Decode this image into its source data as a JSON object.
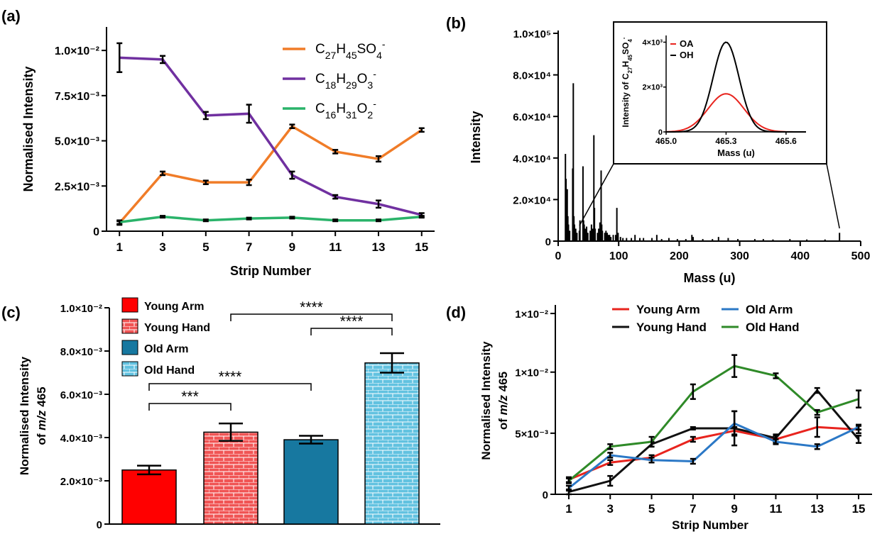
{
  "figure": {
    "panels": [
      {
        "id": "a",
        "label": "(a)"
      },
      {
        "id": "b",
        "label": "(b)"
      },
      {
        "id": "c",
        "label": "(c)"
      },
      {
        "id": "d",
        "label": "(d)"
      }
    ]
  },
  "chart_data": [
    {
      "panel": "(a)",
      "type": "line",
      "xlabel": "Strip Number",
      "ylabel": "Normalised Intensity",
      "x": [
        1,
        3,
        5,
        7,
        9,
        11,
        13,
        15
      ],
      "xticks": [
        "1",
        "3",
        "5",
        "7",
        "9",
        "11",
        "13",
        "15"
      ],
      "ylim": [
        0,
        0.0113
      ],
      "yticks": [
        {
          "v": 0,
          "label": "0"
        },
        {
          "v": 0.0025,
          "label": "2.5×10⁻³"
        },
        {
          "v": 0.005,
          "label": "5.0×10⁻³"
        },
        {
          "v": 0.0075,
          "label": "7.5×10⁻³"
        },
        {
          "v": 0.01,
          "label": "1.0×10⁻²"
        }
      ],
      "series": [
        {
          "name": "C27H45SO4-",
          "legend_html": "C<tspan baseline-shift='sub' font-size='14'>27</tspan>H<tspan baseline-shift='sub' font-size='14'>45</tspan>SO<tspan baseline-shift='sub' font-size='14'>4</tspan><tspan baseline-shift='super' font-size='14'>-</tspan>",
          "color": "#f07c28",
          "values": [
            0.00045,
            0.0032,
            0.0027,
            0.0027,
            0.0058,
            0.0044,
            0.004,
            0.0056
          ],
          "errors": [
            0.0001,
            0.0001,
            0.0001,
            0.00015,
            0.0001,
            0.0001,
            0.00015,
            0.0001
          ]
        },
        {
          "name": "C18H29O3-",
          "legend_html": "C<tspan baseline-shift='sub' font-size='14'>18</tspan>H<tspan baseline-shift='sub' font-size='14'>29</tspan>O<tspan baseline-shift='sub' font-size='14'>3</tspan><tspan baseline-shift='super' font-size='14'>-</tspan>",
          "color": "#7030a0",
          "values": [
            0.0096,
            0.0095,
            0.0064,
            0.0065,
            0.0031,
            0.0019,
            0.0015,
            0.0009
          ],
          "errors": [
            0.0008,
            0.0002,
            0.0002,
            0.0005,
            0.0002,
            0.0001,
            0.0002,
            0.0001
          ]
        },
        {
          "name": "C16H31O2-",
          "legend_html": "C<tspan baseline-shift='sub' font-size='14'>16</tspan>H<tspan baseline-shift='sub' font-size='14'>31</tspan>O<tspan baseline-shift='sub' font-size='14'>2</tspan><tspan baseline-shift='super' font-size='14'>-</tspan>",
          "color": "#2ab36a",
          "values": [
            0.0005,
            0.0008,
            0.0006,
            0.0007,
            0.00075,
            0.0006,
            0.0006,
            0.0008
          ],
          "errors": [
            0.0001,
            5e-05,
            5e-05,
            5e-05,
            5e-05,
            5e-05,
            5e-05,
            5e-05
          ]
        }
      ]
    },
    {
      "panel": "(b)",
      "type": "bar",
      "xlabel": "Mass (u)",
      "ylabel": "Intensity",
      "xlim": [
        0,
        500
      ],
      "ylim": [
        0,
        100000
      ],
      "xticks": [
        {
          "v": 0,
          "label": "0"
        },
        {
          "v": 100,
          "label": "100"
        },
        {
          "v": 200,
          "label": "200"
        },
        {
          "v": 300,
          "label": "300"
        },
        {
          "v": 400,
          "label": "400"
        },
        {
          "v": 500,
          "label": "500"
        }
      ],
      "yticks": [
        {
          "v": 0,
          "label": "0"
        },
        {
          "v": 20000,
          "label": "2.0×10⁴"
        },
        {
          "v": 40000,
          "label": "4.0×10⁴"
        },
        {
          "v": 60000,
          "label": "6.0×10⁴"
        },
        {
          "v": 80000,
          "label": "8.0×10⁴"
        },
        {
          "v": 100000,
          "label": "1.0×10⁵"
        }
      ],
      "peaks": [
        [
          12,
          42000
        ],
        [
          13,
          30000
        ],
        [
          15,
          25000
        ],
        [
          16,
          12000
        ],
        [
          17,
          8000
        ],
        [
          19,
          5000
        ],
        [
          24,
          35000
        ],
        [
          25,
          76000
        ],
        [
          26,
          12000
        ],
        [
          27,
          8000
        ],
        [
          29,
          6000
        ],
        [
          31,
          4000
        ],
        [
          35,
          5000
        ],
        [
          36,
          10000
        ],
        [
          41,
          36000
        ],
        [
          42,
          10000
        ],
        [
          43,
          8000
        ],
        [
          45,
          6000
        ],
        [
          47,
          7000
        ],
        [
          49,
          4000
        ],
        [
          53,
          5000
        ],
        [
          55,
          8000
        ],
        [
          57,
          6000
        ],
        [
          59,
          51000
        ],
        [
          60,
          16000
        ],
        [
          61,
          6000
        ],
        [
          65,
          4000
        ],
        [
          67,
          6000
        ],
        [
          69,
          9000
        ],
        [
          71,
          34000
        ],
        [
          72,
          8000
        ],
        [
          73,
          5000
        ],
        [
          77,
          4000
        ],
        [
          79,
          5000
        ],
        [
          81,
          4000
        ],
        [
          83,
          3000
        ],
        [
          85,
          3000
        ],
        [
          87,
          2000
        ],
        [
          91,
          3000
        ],
        [
          95,
          3000
        ],
        [
          97,
          16000
        ],
        [
          99,
          4000
        ],
        [
          103,
          2000
        ],
        [
          107,
          1500
        ],
        [
          113,
          1500
        ],
        [
          121,
          1500
        ],
        [
          127,
          3000
        ],
        [
          135,
          1500
        ],
        [
          141,
          1500
        ],
        [
          155,
          1500
        ],
        [
          163,
          3000
        ],
        [
          171,
          1000
        ],
        [
          183,
          1500
        ],
        [
          197,
          1000
        ],
        [
          211,
          1000
        ],
        [
          221,
          3000
        ],
        [
          223,
          2000
        ],
        [
          239,
          1000
        ],
        [
          255,
          1000
        ],
        [
          265,
          2000
        ],
        [
          281,
          1500
        ],
        [
          297,
          1000
        ],
        [
          325,
          1000
        ],
        [
          339,
          1000
        ],
        [
          355,
          800
        ],
        [
          383,
          1000
        ],
        [
          411,
          800
        ],
        [
          441,
          800
        ],
        [
          465,
          4000
        ]
      ],
      "inset": {
        "xlabel": "Mass (u)",
        "ylabel_html": "Intensity of C<tspan baseline-shift='sub' font-size='8'>27</tspan>H<tspan baseline-shift='sub' font-size='8'>45</tspan>SO<tspan baseline-shift='sub' font-size='8'>4</tspan><tspan baseline-shift='super' font-size='8'>-</tspan>",
        "xlim": [
          465.0,
          465.7
        ],
        "ylim": [
          0,
          4300
        ],
        "xticks": [
          {
            "v": 465.0,
            "label": "465.0"
          },
          {
            "v": 465.3,
            "label": "465.3"
          },
          {
            "v": 465.6,
            "label": "465.6"
          }
        ],
        "yticks": [
          {
            "v": 0,
            "label": "0"
          },
          {
            "v": 2000,
            "label": "2×10³"
          },
          {
            "v": 4000,
            "label": "4×10³"
          }
        ],
        "series": [
          {
            "name": "OA",
            "color": "#e8241e",
            "peak_x": 465.3,
            "peak_y": 1700,
            "sigma": 0.09
          },
          {
            "name": "OH",
            "color": "#000000",
            "peak_x": 465.3,
            "peak_y": 4000,
            "sigma": 0.065
          }
        ]
      }
    },
    {
      "panel": "(c)",
      "type": "bar",
      "ylabel_line1": "Normalised Intensity",
      "ylabel_line2_pre": "of ",
      "ylabel_line2_italic": "m/z",
      "ylabel_line2_post": " 465",
      "ylim": [
        0,
        0.01
      ],
      "yticks": [
        {
          "v": 0,
          "label": "0"
        },
        {
          "v": 0.002,
          "label": "2.0×10⁻³"
        },
        {
          "v": 0.004,
          "label": "4.0×10⁻³"
        },
        {
          "v": 0.006,
          "label": "6.0×10⁻³"
        },
        {
          "v": 0.008,
          "label": "8.0×10⁻³"
        },
        {
          "v": 0.01,
          "label": "1.0×10⁻²"
        }
      ],
      "categories": [
        "Young Arm",
        "Young Hand",
        "Old Arm",
        "Old Hand"
      ],
      "values": [
        0.0025,
        0.00425,
        0.0039,
        0.00745
      ],
      "errors": [
        0.0002,
        0.0004,
        0.00018,
        0.00045
      ],
      "colors": [
        "#ff0000",
        "#f05454",
        "#1778a0",
        "#62c2e0"
      ],
      "patterns": [
        "solid",
        "brick-red",
        "solid",
        "brick-blue"
      ],
      "significance": [
        {
          "from": 0,
          "to": 1,
          "label": "***"
        },
        {
          "from": 0,
          "to": 2,
          "label": "****"
        },
        {
          "from": 1,
          "to": 3,
          "label": "****"
        },
        {
          "from": 2,
          "to": 3,
          "label": "****"
        }
      ]
    },
    {
      "panel": "(d)",
      "type": "line",
      "xlabel": "Strip Number",
      "ylabel_line1": "Normalised Intensity",
      "ylabel_line2_pre": "of ",
      "ylabel_line2_italic": "m/z",
      "ylabel_line2_post": " 465",
      "x": [
        1,
        3,
        5,
        7,
        9,
        11,
        13,
        15
      ],
      "xticks": [
        "1",
        "3",
        "5",
        "7",
        "9",
        "11",
        "13",
        "15"
      ],
      "ylim": [
        0,
        0.0155
      ],
      "yticks": [
        {
          "v": 0,
          "label": "0"
        },
        {
          "v": 0.005,
          "label": "5×10⁻³"
        },
        {
          "v": 0.01,
          "label": "1×10⁻²"
        },
        {
          "v": 0.0148,
          "label": "1×10⁻²"
        }
      ],
      "series": [
        {
          "name": "Young Arm",
          "color": "#e8241e",
          "values": [
            0.0012,
            0.0026,
            0.003,
            0.0045,
            0.0052,
            0.0045,
            0.0055,
            0.0053
          ],
          "errors": [
            0.0002,
            0.0002,
            0.0002,
            0.0002,
            0.0003,
            0.0003,
            0.0008,
            0.0003
          ]
        },
        {
          "name": "Young Hand",
          "color": "#111111",
          "values": [
            0.0002,
            0.0011,
            0.0041,
            0.0054,
            0.0054,
            0.0046,
            0.0085,
            0.0045
          ],
          "errors": [
            0.0002,
            0.0004,
            0.0002,
            0.0001,
            0.0014,
            0.0003,
            0.0002,
            0.0003
          ]
        },
        {
          "name": "Old Arm",
          "color": "#2b78c6",
          "values": [
            0.0005,
            0.0032,
            0.0028,
            0.0027,
            0.0058,
            0.0043,
            0.0039,
            0.0055
          ],
          "errors": [
            0.0002,
            0.0002,
            0.0002,
            0.0002,
            0.001,
            0.0002,
            0.0002,
            0.0002
          ]
        },
        {
          "name": "Old Hand",
          "color": "#2f8a28",
          "values": [
            0.0011,
            0.0039,
            0.0043,
            0.0084,
            0.0105,
            0.0097,
            0.0067,
            0.0078
          ],
          "errors": [
            0.0002,
            0.0002,
            0.0004,
            0.0006,
            0.0009,
            0.0002,
            0.0002,
            0.0007
          ]
        }
      ]
    }
  ]
}
